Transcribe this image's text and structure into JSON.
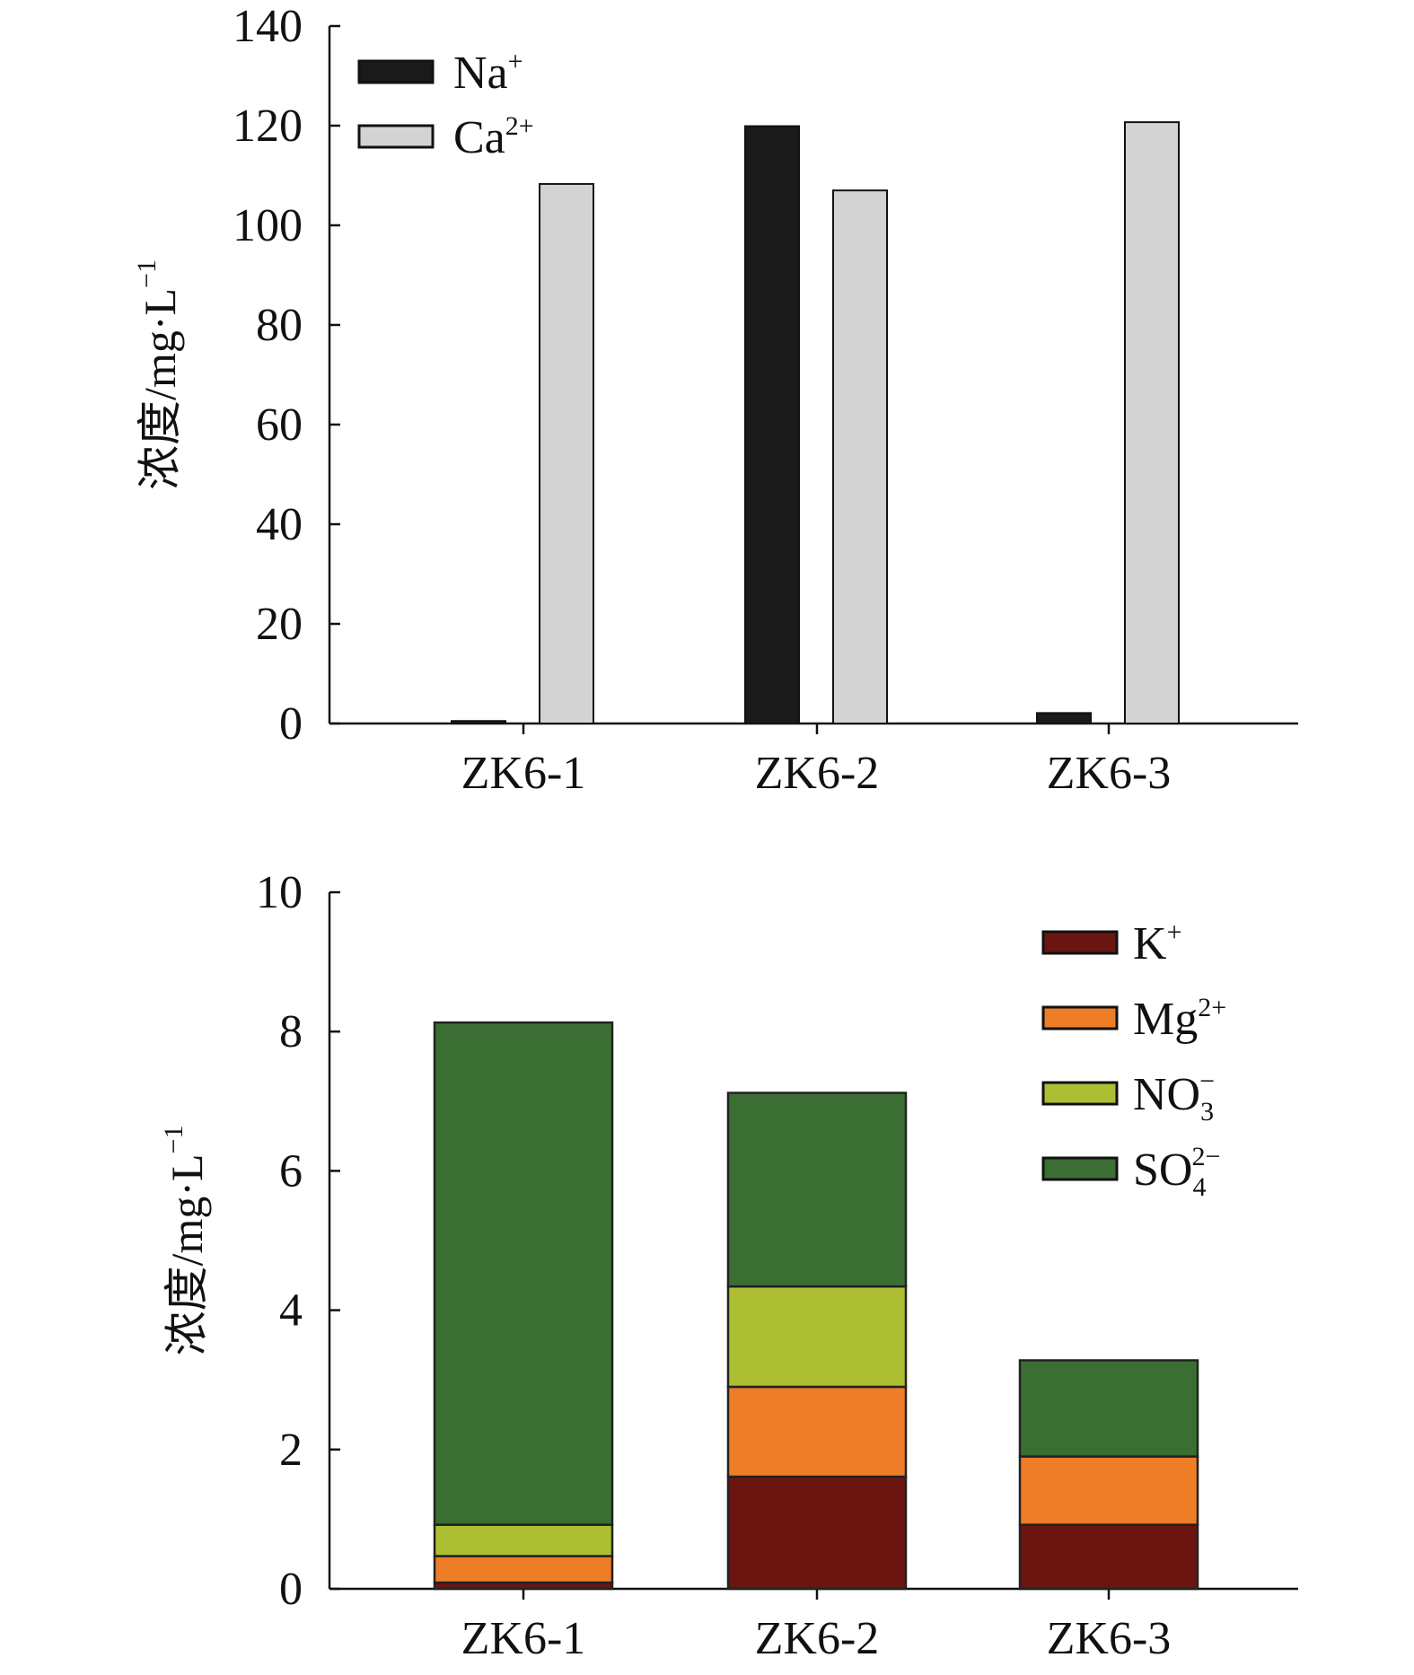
{
  "chart_data": [
    {
      "type": "bar",
      "title": "",
      "xlabel": "",
      "ylabel": "浓度/mg·L⁻¹",
      "ylabel_main": "浓度/mg·L",
      "ylabel_sup": "−1",
      "ylim": [
        0,
        140
      ],
      "yticks": [
        0,
        20,
        40,
        60,
        80,
        100,
        120,
        140
      ],
      "categories": [
        "ZK6-1",
        "ZK6-2",
        "ZK6-3"
      ],
      "legend_position": "top-left",
      "series": [
        {
          "name": "Na+",
          "label": "Na",
          "sup": "+",
          "sub": "",
          "color": "#1a1a1a",
          "values": [
            0.5,
            119.9,
            2.1
          ]
        },
        {
          "name": "Ca2+",
          "label": "Ca",
          "sup": "2+",
          "sub": "",
          "color": "#d3d3d3",
          "values": [
            108.3,
            107.0,
            120.7
          ]
        }
      ]
    },
    {
      "type": "bar",
      "stacked": true,
      "title": "",
      "xlabel": "",
      "ylabel": "浓度/mg·L⁻¹",
      "ylabel_main": "浓度/mg·L",
      "ylabel_sup": "−1",
      "ylim": [
        0,
        10
      ],
      "yticks": [
        0,
        2,
        4,
        6,
        8,
        10
      ],
      "categories": [
        "ZK6-1",
        "ZK6-2",
        "ZK6-3"
      ],
      "legend_position": "top-right",
      "series": [
        {
          "name": "K+",
          "label": "K",
          "sup": "+",
          "sub": "",
          "color": "#6b1510",
          "values": [
            0.09,
            1.61,
            0.92
          ]
        },
        {
          "name": "Mg2+",
          "label": "Mg",
          "sup": "2+",
          "sub": "",
          "color": "#ee7d28",
          "values": [
            0.38,
            1.29,
            0.98
          ]
        },
        {
          "name": "NO3-",
          "label": "NO",
          "sup": "−",
          "sub": "3",
          "color": "#acbf33",
          "values": [
            0.45,
            1.44,
            0.0
          ]
        },
        {
          "name": "SO42-",
          "label": "SO",
          "sup": "2−",
          "sub": "4",
          "color": "#3b6e33",
          "values": [
            7.21,
            2.78,
            1.38
          ]
        }
      ]
    }
  ]
}
